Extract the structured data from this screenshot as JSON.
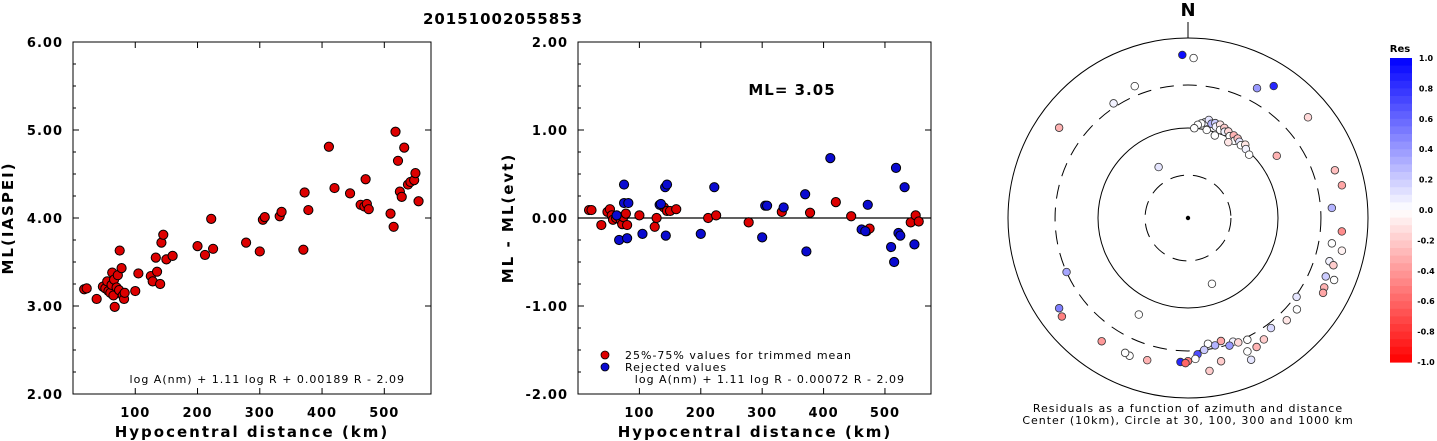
{
  "event_id": "20151002055853",
  "chart_data": [
    {
      "type": "scatter",
      "xlabel": "Hypocentral distance (km)",
      "ylabel": "ML(IASPEI)",
      "xlim": [
        0,
        575
      ],
      "ylim": [
        2.0,
        6.0
      ],
      "xticks": [
        "100",
        "200",
        "300",
        "400",
        "500"
      ],
      "yticks": [
        "2.00",
        "3.00",
        "4.00",
        "5.00",
        "6.00"
      ],
      "formula": "log A(nm) + 1.11 log R + 0.00189 R - 2.09",
      "grid": false,
      "series": [
        {
          "color": "#dd0000",
          "points": [
            [
              18,
              3.19
            ],
            [
              22,
              3.2
            ],
            [
              38,
              3.08
            ],
            [
              48,
              3.22
            ],
            [
              52,
              3.2
            ],
            [
              55,
              3.28
            ],
            [
              57,
              3.17
            ],
            [
              60,
              3.15
            ],
            [
              62,
              3.24
            ],
            [
              63,
              3.38
            ],
            [
              65,
              3.12
            ],
            [
              66,
              3.3
            ],
            [
              67,
              2.99
            ],
            [
              70,
              3.21
            ],
            [
              72,
              3.35
            ],
            [
              74,
              3.18
            ],
            [
              75,
              3.63
            ],
            [
              78,
              3.43
            ],
            [
              80,
              3.12
            ],
            [
              82,
              3.08
            ],
            [
              83,
              3.15
            ],
            [
              100,
              3.17
            ],
            [
              105,
              3.37
            ],
            [
              125,
              3.34
            ],
            [
              128,
              3.28
            ],
            [
              133,
              3.55
            ],
            [
              135,
              3.39
            ],
            [
              140,
              3.25
            ],
            [
              142,
              3.72
            ],
            [
              145,
              3.81
            ],
            [
              150,
              3.53
            ],
            [
              160,
              3.57
            ],
            [
              200,
              3.68
            ],
            [
              212,
              3.58
            ],
            [
              222,
              3.99
            ],
            [
              225,
              3.65
            ],
            [
              278,
              3.72
            ],
            [
              300,
              3.62
            ],
            [
              305,
              3.98
            ],
            [
              308,
              4.01
            ],
            [
              332,
              4.02
            ],
            [
              335,
              4.07
            ],
            [
              370,
              3.64
            ],
            [
              372,
              4.29
            ],
            [
              378,
              4.09
            ],
            [
              411,
              4.81
            ],
            [
              420,
              4.34
            ],
            [
              445,
              4.28
            ],
            [
              462,
              4.15
            ],
            [
              468,
              4.13
            ],
            [
              470,
              4.44
            ],
            [
              472,
              4.16
            ],
            [
              475,
              4.1
            ],
            [
              510,
              4.05
            ],
            [
              515,
              3.9
            ],
            [
              518,
              4.98
            ],
            [
              522,
              4.65
            ],
            [
              525,
              4.3
            ],
            [
              528,
              4.24
            ],
            [
              532,
              4.8
            ],
            [
              538,
              4.38
            ],
            [
              542,
              4.41
            ],
            [
              548,
              4.43
            ],
            [
              550,
              4.51
            ],
            [
              555,
              4.19
            ]
          ]
        }
      ]
    },
    {
      "type": "scatter",
      "xlabel": "Hypocentral distance (km)",
      "ylabel": "ML - ML(evt)",
      "xlim": [
        0,
        575
      ],
      "ylim": [
        -2.0,
        2.0
      ],
      "xticks": [
        "100",
        "200",
        "300",
        "400",
        "500"
      ],
      "yticks": [
        "-2.00",
        "-1.00",
        "0.00",
        "1.00",
        "2.00"
      ],
      "annotation": "ML= 3.05",
      "formula": "log A(nm) + 1.11 log R - 0.00072 R - 2.09",
      "grid": false,
      "legend": "bottom-left",
      "series": [
        {
          "name": "25%-75% values for trimmed mean",
          "color": "#dd0000",
          "points": [
            [
              18,
              0.09
            ],
            [
              22,
              0.09
            ],
            [
              38,
              -0.08
            ],
            [
              48,
              0.07
            ],
            [
              52,
              0.1
            ],
            [
              55,
              0.03
            ],
            [
              57,
              -0.02
            ],
            [
              62,
              0.0
            ],
            [
              65,
              0.02
            ],
            [
              70,
              -0.03
            ],
            [
              72,
              -0.07
            ],
            [
              74,
              0.01
            ],
            [
              78,
              0.05
            ],
            [
              80,
              -0.08
            ],
            [
              100,
              0.03
            ],
            [
              125,
              -0.1
            ],
            [
              128,
              0.0
            ],
            [
              140,
              0.12
            ],
            [
              145,
              0.08
            ],
            [
              150,
              0.08
            ],
            [
              160,
              0.1
            ],
            [
              212,
              0.0
            ],
            [
              225,
              0.03
            ],
            [
              278,
              -0.05
            ],
            [
              332,
              0.07
            ],
            [
              378,
              0.06
            ],
            [
              420,
              0.18
            ],
            [
              445,
              0.02
            ],
            [
              470,
              -0.15
            ],
            [
              475,
              -0.12
            ],
            [
              542,
              -0.05
            ],
            [
              550,
              0.03
            ],
            [
              555,
              -0.04
            ]
          ]
        },
        {
          "name": "Rejected values",
          "color": "#0a0ad0",
          "points": [
            [
              63,
              0.03
            ],
            [
              67,
              -0.25
            ],
            [
              75,
              0.38
            ],
            [
              75,
              0.17
            ],
            [
              80,
              -0.23
            ],
            [
              82,
              0.17
            ],
            [
              105,
              -0.18
            ],
            [
              133,
              0.15
            ],
            [
              135,
              0.16
            ],
            [
              142,
              0.35
            ],
            [
              143,
              -0.2
            ],
            [
              145,
              0.38
            ],
            [
              200,
              -0.18
            ],
            [
              222,
              0.35
            ],
            [
              300,
              -0.22
            ],
            [
              305,
              0.14
            ],
            [
              308,
              0.14
            ],
            [
              335,
              0.12
            ],
            [
              370,
              0.27
            ],
            [
              372,
              -0.38
            ],
            [
              411,
              0.68
            ],
            [
              462,
              -0.13
            ],
            [
              468,
              -0.15
            ],
            [
              472,
              0.15
            ],
            [
              510,
              -0.33
            ],
            [
              515,
              -0.5
            ],
            [
              518,
              0.57
            ],
            [
              522,
              -0.17
            ],
            [
              525,
              -0.2
            ],
            [
              532,
              0.35
            ],
            [
              548,
              -0.3
            ]
          ]
        }
      ]
    },
    {
      "type": "polar-scatter",
      "north_label": "N",
      "caption_line1": "Residuals as a function of azimuth and distance",
      "caption_line2": "Center (10km), Circle at 30, 100, 300 and 1000 km",
      "colorbar_title": "Res",
      "colorbar_ticks": [
        "1.0",
        "0.8",
        "0.6",
        "0.4",
        "0.2",
        "0.0",
        "-0.2",
        "-0.4",
        "-0.6",
        "-0.8",
        "-1.0"
      ],
      "rings": [
        {
          "radius_km": 30,
          "style": "dashed"
        },
        {
          "radius_km": 100,
          "style": "solid"
        },
        {
          "radius_km": 300,
          "style": "dashed"
        },
        {
          "radius_km": 1000,
          "style": "solid"
        }
      ],
      "stations": [
        {
          "az": 358,
          "dist_km": 650,
          "res": 0.95
        },
        {
          "az": 33,
          "dist_km": 560,
          "res": 0.85
        },
        {
          "az": 28,
          "dist_km": 430,
          "res": 0.4
        },
        {
          "az": 338,
          "dist_km": 380,
          "res": 0.0
        },
        {
          "az": 327,
          "dist_km": 330,
          "res": 0.05
        },
        {
          "az": 305,
          "dist_km": 560,
          "res": -0.3
        },
        {
          "az": 50,
          "dist_km": 550,
          "res": -0.15
        },
        {
          "az": 72,
          "dist_km": 520,
          "res": -0.25
        },
        {
          "az": 78,
          "dist_km": 560,
          "res": -0.35
        },
        {
          "az": 86,
          "dist_km": 400,
          "res": 0.3
        },
        {
          "az": 95,
          "dist_km": 520,
          "res": -0.45
        },
        {
          "az": 102,
          "dist_km": 560,
          "res": -0.05
        },
        {
          "az": 100,
          "dist_km": 420,
          "res": 0.0
        },
        {
          "az": 107,
          "dist_km": 440,
          "res": 0.05
        },
        {
          "az": 113,
          "dist_km": 580,
          "res": 0.0
        },
        {
          "az": 108,
          "dist_km": 500,
          "res": -0.2
        },
        {
          "az": 113,
          "dist_km": 460,
          "res": 0.2
        },
        {
          "az": 117,
          "dist_km": 500,
          "res": -0.3
        },
        {
          "az": 119,
          "dist_km": 520,
          "res": -0.35
        },
        {
          "az": 126,
          "dist_km": 310,
          "res": 0.1
        },
        {
          "az": 130,
          "dist_km": 380,
          "res": 0.0
        },
        {
          "az": 136,
          "dist_km": 380,
          "res": -0.1
        },
        {
          "az": 143,
          "dist_km": 340,
          "res": 0.15
        },
        {
          "az": 148,
          "dist_km": 390,
          "res": -0.2
        },
        {
          "az": 152,
          "dist_km": 420,
          "res": -0.3
        },
        {
          "az": 156,
          "dist_km": 420,
          "res": 0.0
        },
        {
          "az": 156,
          "dist_km": 530,
          "res": 0.1
        },
        {
          "az": 167,
          "dist_km": 430,
          "res": -0.2
        },
        {
          "az": 172,
          "dist_km": 520,
          "res": -0.2
        },
        {
          "az": 160,
          "dist_km": 290,
          "res": 0.05
        },
        {
          "az": 158,
          "dist_km": 310,
          "res": -0.15
        },
        {
          "az": 162,
          "dist_km": 310,
          "res": 0.4
        },
        {
          "az": 154,
          "dist_km": 320,
          "res": 0.0
        },
        {
          "az": 165,
          "dist_km": 260,
          "res": -0.35
        },
        {
          "az": 168,
          "dist_km": 280,
          "res": 0.3
        },
        {
          "az": 171,
          "dist_km": 260,
          "res": 0.0
        },
        {
          "az": 173,
          "dist_km": 300,
          "res": 0.2
        },
        {
          "az": 176,
          "dist_km": 330,
          "res": 0.7
        },
        {
          "az": 177,
          "dist_km": 370,
          "res": 0.0
        },
        {
          "az": 180,
          "dist_km": 390,
          "res": -0.5
        },
        {
          "az": 183,
          "dist_km": 400,
          "res": 0.85
        },
        {
          "az": 181,
          "dist_km": 410,
          "res": -0.6
        },
        {
          "az": 196,
          "dist_km": 440,
          "res": -0.3
        },
        {
          "az": 203,
          "dist_km": 460,
          "res": 0.0
        },
        {
          "az": 205,
          "dist_km": 450,
          "res": 0.0
        },
        {
          "az": 215,
          "dist_km": 470,
          "res": -0.4
        },
        {
          "az": 232,
          "dist_km": 600,
          "res": -0.5
        },
        {
          "az": 235,
          "dist_km": 560,
          "res": 0.5
        },
        {
          "az": 246,
          "dist_km": 300,
          "res": 0.35
        },
        {
          "az": 207,
          "dist_km": 160,
          "res": 0.0
        },
        {
          "az": 160,
          "dist_km": 60,
          "res": 0.0
        },
        {
          "az": 330,
          "dist_km": 45,
          "res": 0.1
        },
        {
          "az": 10,
          "dist_km": 120,
          "res": 0.05
        },
        {
          "az": 12,
          "dist_km": 130,
          "res": 0.1
        },
        {
          "az": 14,
          "dist_km": 120,
          "res": 0.3
        },
        {
          "az": 16,
          "dist_km": 125,
          "res": 0.2
        },
        {
          "az": 17,
          "dist_km": 115,
          "res": 0.05
        },
        {
          "az": 19,
          "dist_km": 125,
          "res": -0.1
        },
        {
          "az": 20,
          "dist_km": 110,
          "res": 0.0
        },
        {
          "az": 22,
          "dist_km": 120,
          "res": -0.2
        },
        {
          "az": 23,
          "dist_km": 110,
          "res": 0.05
        },
        {
          "az": 25,
          "dist_km": 115,
          "res": -0.15
        },
        {
          "az": 27,
          "dist_km": 105,
          "res": 0.0
        },
        {
          "az": 29,
          "dist_km": 112,
          "res": -0.3
        },
        {
          "az": 31,
          "dist_km": 100,
          "res": 0.0
        },
        {
          "az": 32,
          "dist_km": 110,
          "res": -0.25
        },
        {
          "az": 34,
          "dist_km": 105,
          "res": 0.1
        },
        {
          "az": 36,
          "dist_km": 100,
          "res": 0.0
        },
        {
          "az": 38,
          "dist_km": 108,
          "res": -0.1
        },
        {
          "az": 40,
          "dist_km": 100,
          "res": 0.05
        },
        {
          "az": 8,
          "dist_km": 115,
          "res": 0.0
        },
        {
          "az": 6,
          "dist_km": 110,
          "res": 0.0
        },
        {
          "az": 4,
          "dist_km": 100,
          "res": 0.0
        },
        {
          "az": 12,
          "dist_km": 100,
          "res": 0.0
        },
        {
          "az": 44,
          "dist_km": 95,
          "res": 0.0
        },
        {
          "az": 28,
          "dist_km": 90,
          "res": -0.1
        },
        {
          "az": 18,
          "dist_km": 92,
          "res": 0.0
        },
        {
          "az": 55,
          "dist_km": 160,
          "res": -0.3
        },
        {
          "az": 2,
          "dist_km": 600,
          "res": 0.0
        }
      ]
    }
  ]
}
